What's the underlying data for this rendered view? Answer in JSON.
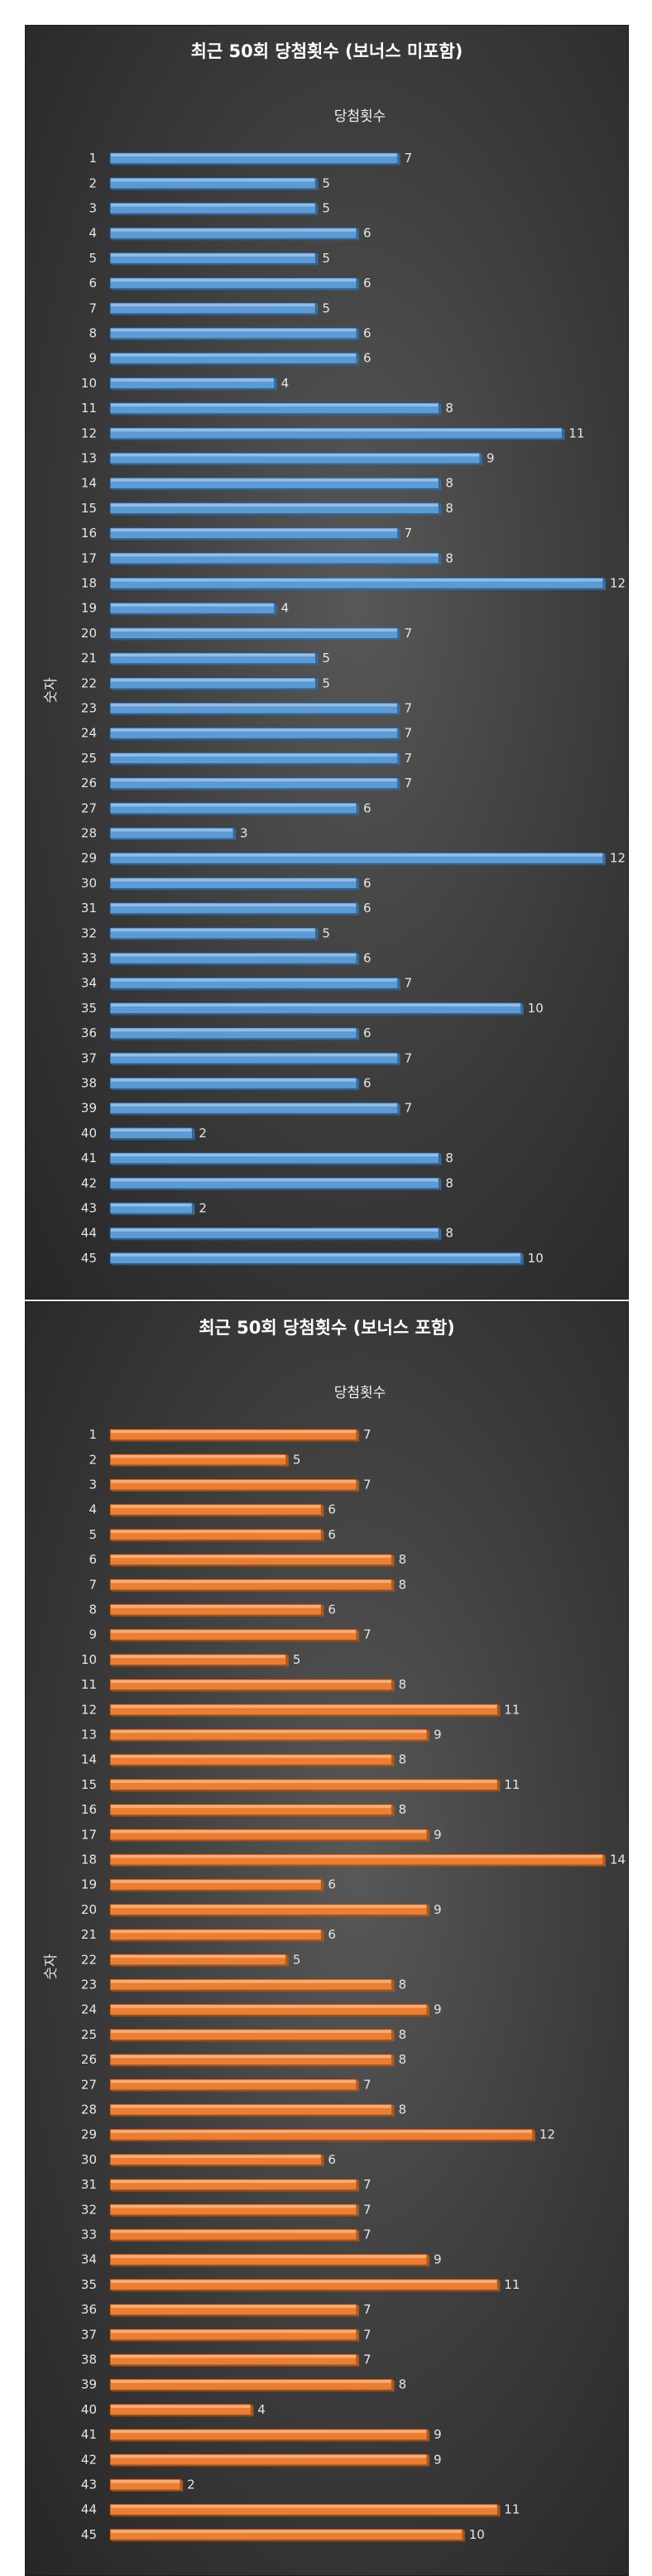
{
  "charts": [
    {
      "title": "최근 50회 당첨횟수 (보너스 미포함)",
      "series_name": "당첨횟수",
      "y_axis_label": "숫자",
      "colors": {
        "face": "#5b9bd5",
        "top": "#9cc3e8",
        "side": "#2f6ea8",
        "edge": "#1e4f7f"
      }
    },
    {
      "title": "최근 50회 당첨횟수 (보너스 포함)",
      "series_name": "당첨횟수",
      "y_axis_label": "숫자",
      "colors": {
        "face": "#ed7d31",
        "top": "#f6b586",
        "side": "#b55814",
        "edge": "#7f3d0c"
      }
    }
  ],
  "chart_data": [
    {
      "type": "bar",
      "orientation": "horizontal",
      "title": "최근 50회 당첨횟수 (보너스 미포함)",
      "xlabel": "",
      "ylabel": "숫자",
      "xlim": [
        0,
        12
      ],
      "grid": false,
      "categories": [
        "1",
        "2",
        "3",
        "4",
        "5",
        "6",
        "7",
        "8",
        "9",
        "10",
        "11",
        "12",
        "13",
        "14",
        "15",
        "16",
        "17",
        "18",
        "19",
        "20",
        "21",
        "22",
        "23",
        "24",
        "25",
        "26",
        "27",
        "28",
        "29",
        "30",
        "31",
        "32",
        "33",
        "34",
        "35",
        "36",
        "37",
        "38",
        "39",
        "40",
        "41",
        "42",
        "43",
        "44",
        "45"
      ],
      "series": [
        {
          "name": "당첨횟수",
          "values": [
            7,
            5,
            5,
            6,
            5,
            6,
            5,
            6,
            6,
            4,
            8,
            11,
            9,
            8,
            8,
            7,
            8,
            12,
            4,
            7,
            5,
            5,
            7,
            7,
            7,
            7,
            6,
            3,
            12,
            6,
            6,
            5,
            6,
            7,
            10,
            6,
            7,
            6,
            7,
            2,
            8,
            8,
            2,
            8,
            10
          ]
        }
      ]
    },
    {
      "type": "bar",
      "orientation": "horizontal",
      "title": "최근 50회 당첨횟수 (보너스 포함)",
      "xlabel": "",
      "ylabel": "숫자",
      "xlim": [
        0,
        14
      ],
      "grid": false,
      "categories": [
        "1",
        "2",
        "3",
        "4",
        "5",
        "6",
        "7",
        "8",
        "9",
        "10",
        "11",
        "12",
        "13",
        "14",
        "15",
        "16",
        "17",
        "18",
        "19",
        "20",
        "21",
        "22",
        "23",
        "24",
        "25",
        "26",
        "27",
        "28",
        "29",
        "30",
        "31",
        "32",
        "33",
        "34",
        "35",
        "36",
        "37",
        "38",
        "39",
        "40",
        "41",
        "42",
        "43",
        "44",
        "45"
      ],
      "series": [
        {
          "name": "당첨횟수",
          "values": [
            7,
            5,
            7,
            6,
            6,
            8,
            8,
            6,
            7,
            5,
            8,
            11,
            9,
            8,
            11,
            8,
            9,
            14,
            6,
            9,
            6,
            5,
            8,
            9,
            8,
            8,
            7,
            8,
            12,
            6,
            7,
            7,
            7,
            9,
            11,
            7,
            7,
            7,
            8,
            4,
            9,
            9,
            2,
            11,
            10
          ]
        }
      ]
    }
  ]
}
